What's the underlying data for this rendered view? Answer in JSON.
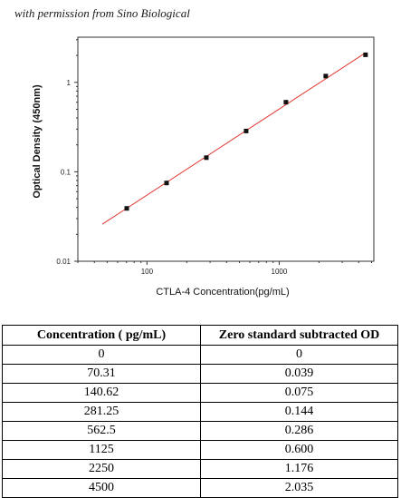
{
  "credit": "with permission from Sino Biological",
  "chart_data": {
    "type": "scatter",
    "xscale": "log",
    "yscale": "log",
    "xlabel": "CTLA-4  Concentration(pg/mL)",
    "ylabel": "Optical Density (450nm)",
    "xlim": [
      30,
      5200
    ],
    "ylim": [
      0.01,
      3.2
    ],
    "x_ticks": [
      {
        "v": 100,
        "label": "100"
      },
      {
        "v": 1000,
        "label": "1000"
      }
    ],
    "y_ticks": [
      {
        "v": 0.01,
        "label": "0.01"
      },
      {
        "v": 0.1,
        "label": "0.1"
      },
      {
        "v": 1,
        "label": "1"
      }
    ],
    "points": [
      {
        "x": 70.31,
        "y": 0.039
      },
      {
        "x": 140.62,
        "y": 0.075
      },
      {
        "x": 281.25,
        "y": 0.144
      },
      {
        "x": 562.5,
        "y": 0.286
      },
      {
        "x": 1125,
        "y": 0.6
      },
      {
        "x": 2250,
        "y": 1.176
      },
      {
        "x": 4500,
        "y": 2.035
      }
    ],
    "fit_line": {
      "x": [
        46,
        4500
      ],
      "y": [
        0.026,
        2.14
      ],
      "color": "#e0302a"
    },
    "marker_color": "#111111"
  },
  "table": {
    "headers": [
      "Concentration ( pg/mL)",
      "Zero standard subtracted OD"
    ],
    "rows": [
      [
        "0",
        "0"
      ],
      [
        "70.31",
        "0.039"
      ],
      [
        "140.62",
        "0.075"
      ],
      [
        "281.25",
        "0.144"
      ],
      [
        "562.5",
        "0.286"
      ],
      [
        "1125",
        "0.600"
      ],
      [
        "2250",
        "1.176"
      ],
      [
        "4500",
        "2.035"
      ]
    ]
  }
}
